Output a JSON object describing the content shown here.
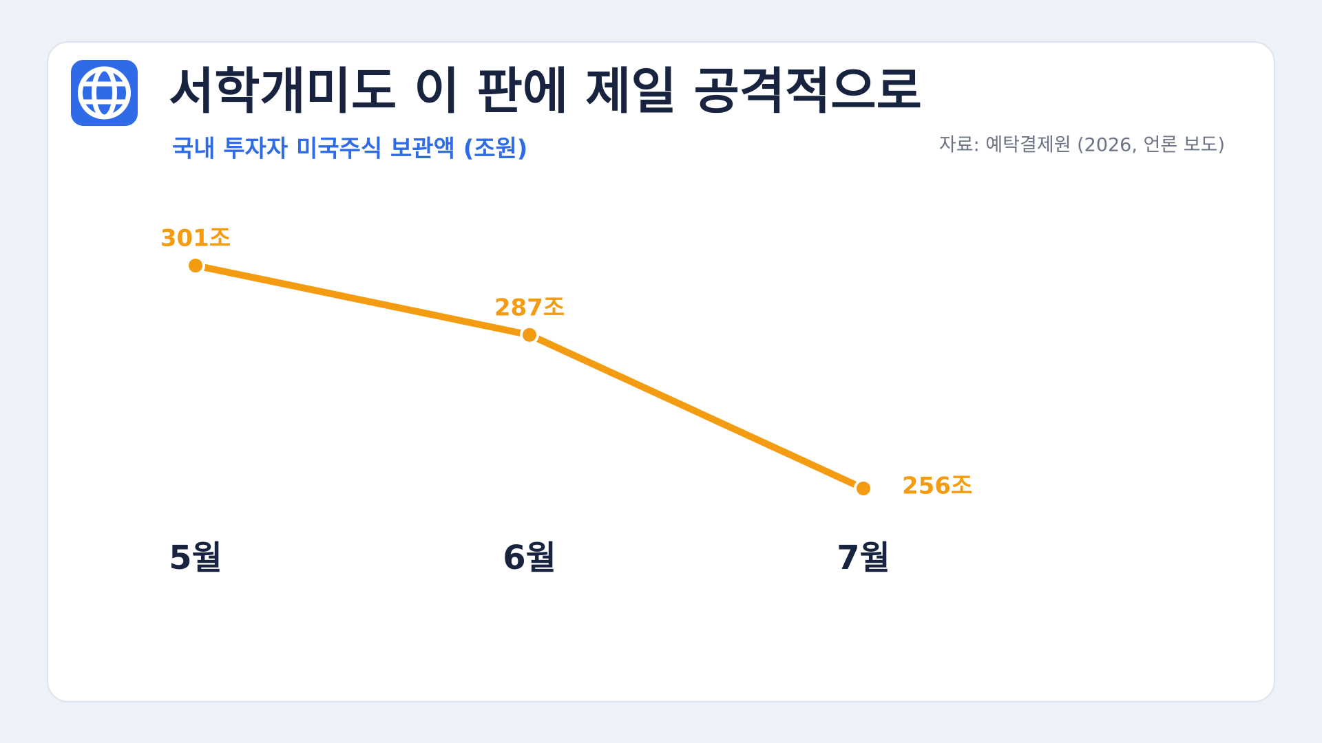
{
  "chart_data": {
    "type": "line",
    "title": "서학개미도 이 판에 제일 공격적으로",
    "subtitle": "국내 투자자 미국주식 보관액 (조원)",
    "source": "자료: 예탁결제원 (2026, 언론 보도)",
    "categories": [
      "5월",
      "6월",
      "7월"
    ],
    "values": [
      301,
      287,
      256
    ],
    "value_labels": [
      "301조",
      "287조",
      "256조"
    ],
    "color": "#f39c12"
  }
}
